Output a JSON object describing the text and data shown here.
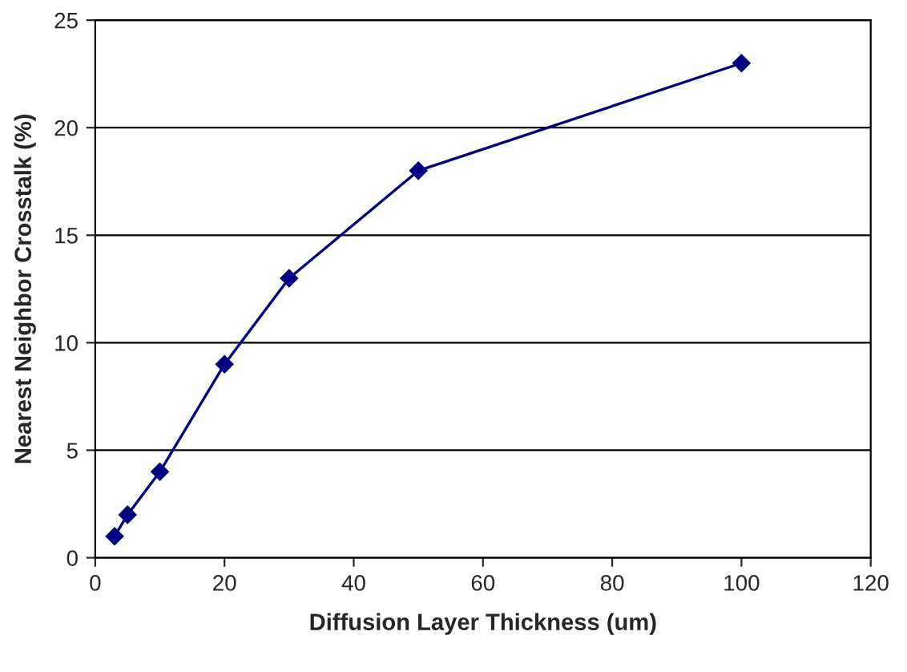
{
  "chart_data": {
    "type": "line",
    "xlabel": "Diffusion Layer Thickness (um)",
    "ylabel": "Nearest Neighbor Crosstalk (%)",
    "x": [
      3,
      5,
      10,
      20,
      30,
      50,
      100
    ],
    "series": [
      {
        "color": "#000080",
        "values": [
          1,
          2,
          4,
          9,
          13,
          18,
          23
        ]
      }
    ],
    "xlim": [
      0,
      120
    ],
    "xticks": [
      0,
      20,
      40,
      60,
      80,
      100,
      120
    ],
    "ylim": [
      0,
      25
    ],
    "yticks": [
      0,
      5,
      10,
      15,
      20,
      25
    ],
    "grid": "y",
    "marker": "diamond",
    "line_style": "solid",
    "legend": false
  }
}
